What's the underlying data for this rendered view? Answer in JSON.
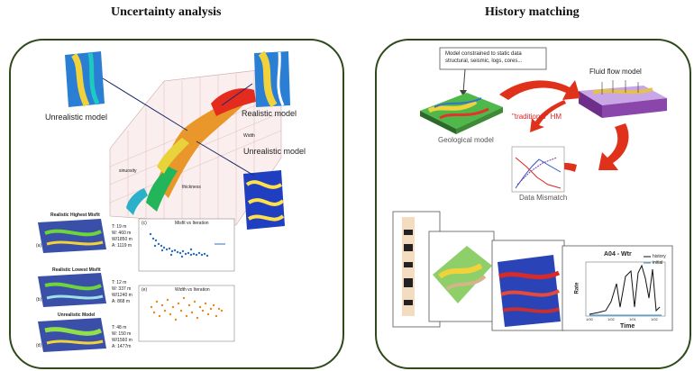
{
  "titles": {
    "left": "Uncertainty analysis",
    "right": "History matching"
  },
  "uncertainty": {
    "labels": {
      "unrealistic_top": "Unrealistic model",
      "realistic": "Realistic model",
      "unrealistic_right": "Unrealistic model",
      "axis_width": "Width",
      "axis_thickness": "thickness",
      "axis_sinuosity": "sinuosity"
    },
    "maps": [
      {
        "title": "Realistic Highest Misfit",
        "tag": "(a)",
        "stats": [
          "T: 19 m",
          "W: 460 m",
          "W/1850 m",
          "A: 1119 m"
        ]
      },
      {
        "title": "Realistic Lowest Misfit",
        "tag": "(b)",
        "stats": [
          "T: 12 m",
          "W: 337 m",
          "W/1240 m",
          "A: 868 m"
        ]
      },
      {
        "title": "Unrealistic Model",
        "tag": "(d)",
        "stats": [
          "T: 48 m",
          "W: 150 m",
          "W/1560 m",
          "A: 1477m"
        ]
      }
    ],
    "charts": [
      {
        "tag": "(c)",
        "title": "Misfit vs Iteration"
      },
      {
        "tag": "(e)",
        "title": "Width vs Iteration"
      }
    ]
  },
  "history": {
    "callout": [
      "Model constrained to static data",
      "structural, seismic, logs, cores..."
    ],
    "labels": {
      "fluid_flow": "Fluid flow model",
      "traditional": "\"traditional\" HM",
      "geological": "Geological model",
      "mismatch": "Data Mismatch"
    },
    "rate_chart": {
      "title": "A04 - Wtr",
      "ylabel": "Rate",
      "xlabel": "Time",
      "legend": [
        "history",
        "initial"
      ],
      "ticks": [
        "1/00",
        "1/02",
        "1/01",
        "1/02"
      ]
    }
  },
  "colors": {
    "panel_border": "#2f4a1a",
    "arrow": "#e0311b",
    "history_line": "#111111",
    "initial_line": "#2a8fd8"
  }
}
